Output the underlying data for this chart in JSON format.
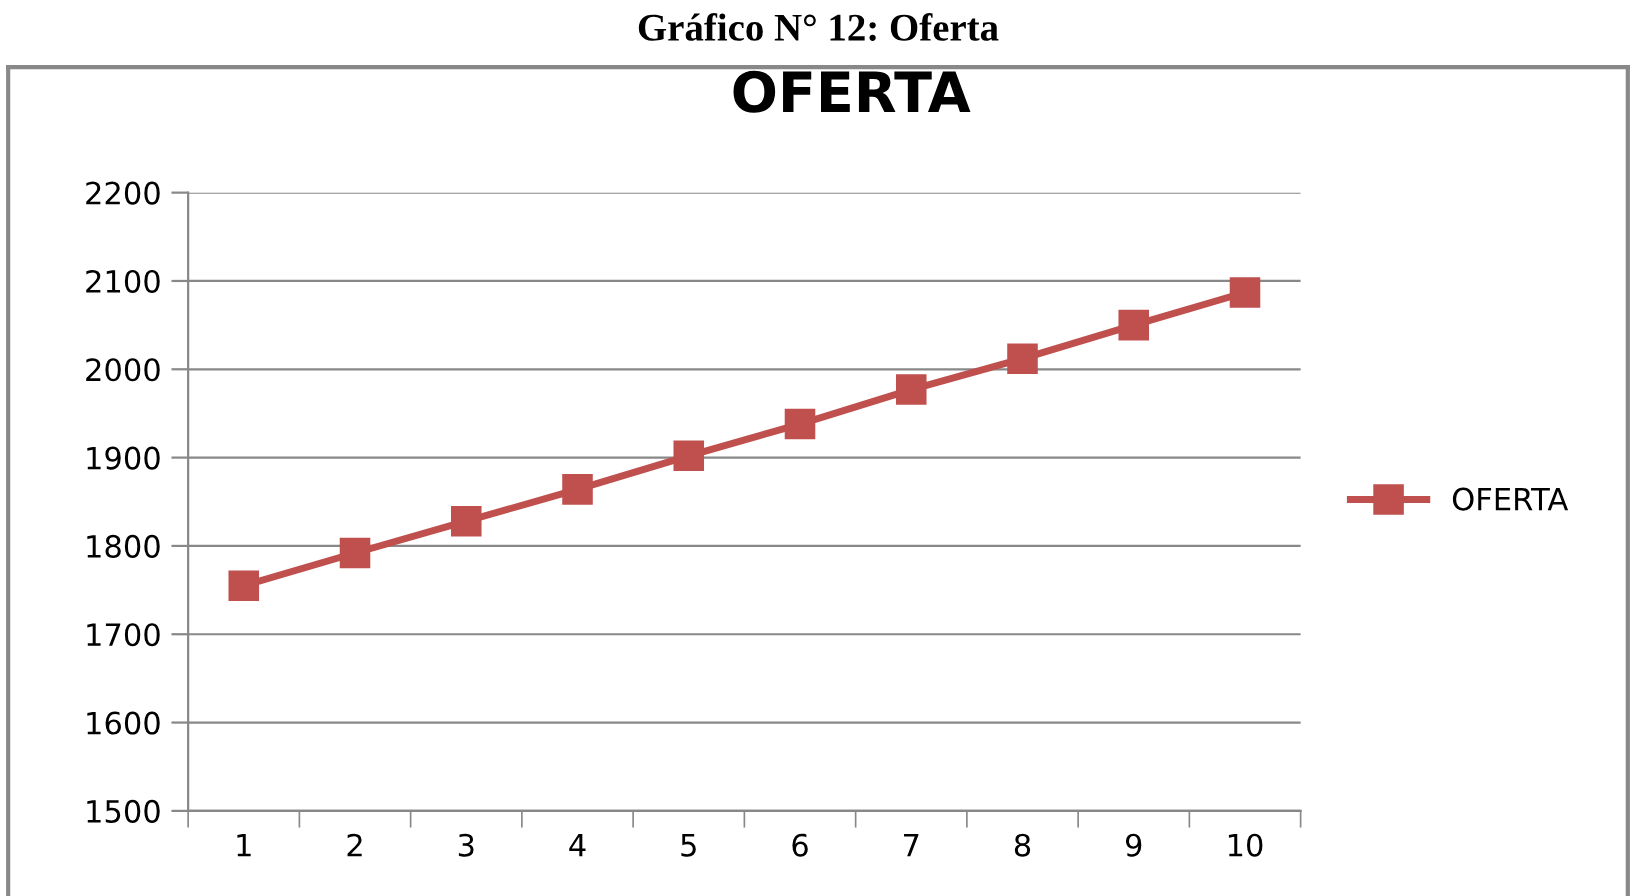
{
  "chart_data": {
    "type": "line",
    "subtitle": "Gráfico N° 12: Oferta",
    "title": "OFERTA",
    "categories": [
      "1",
      "2",
      "3",
      "4",
      "5",
      "6",
      "7",
      "8",
      "9",
      "10"
    ],
    "series": [
      {
        "name": "OFERTA",
        "color": "#c0504d",
        "values": [
          1755,
          1792,
          1828,
          1864,
          1902,
          1938,
          1977,
          2012,
          2050,
          2087
        ]
      }
    ],
    "ylim": [
      1500,
      2200
    ],
    "yticks": [
      1500,
      1600,
      1700,
      1800,
      1900,
      2000,
      2100,
      2200
    ],
    "grid": "y",
    "legend": "right",
    "marker": "square",
    "line_style": "solid"
  }
}
